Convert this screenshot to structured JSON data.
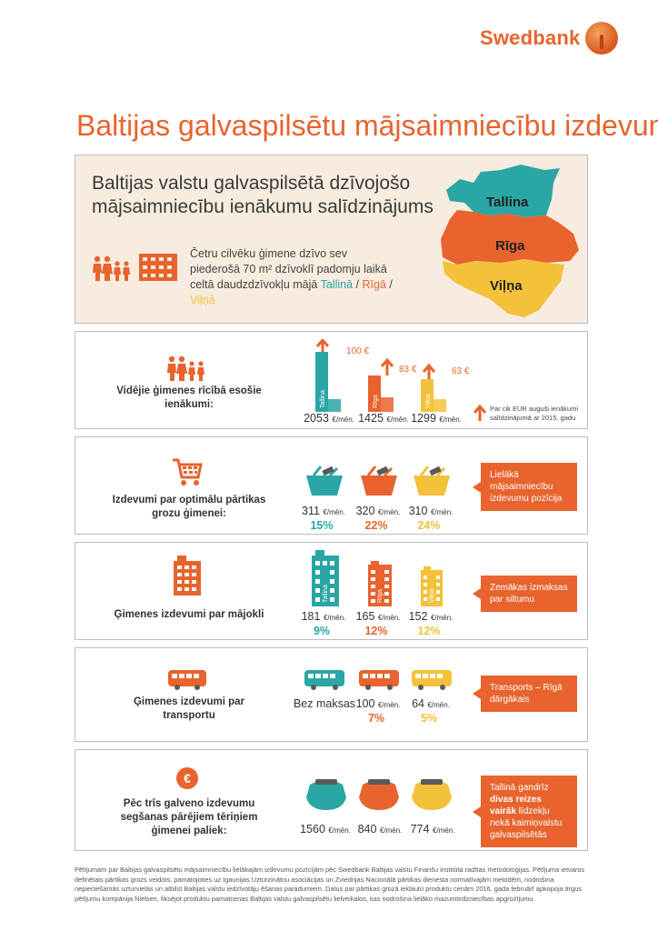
{
  "brand": {
    "name": "Swedbank"
  },
  "title": "Baltijas galvaspilsētu mājsaimniecību izdevumi",
  "intro": {
    "title": "Baltijas valstu galvaspilsētā dzīvojošo mājsaimniecību ienākumu salīdzinājums",
    "text_prefix": "Četru cilvēku ģimene dzīvo sev piederošā 70 m² dzīvoklī padomju laikā celtā daudzdzīvokļu mājā ",
    "city_tallinn": "Tallinā",
    "sep1": " / ",
    "city_riga": "Rīgā",
    "sep2": " / ",
    "city_vilnius": "Viļņā",
    "map_labels": {
      "tallinn": "Tallina",
      "riga": "Rīga",
      "vilnius": "Viļņa"
    }
  },
  "colors": {
    "tallinn": "#2aa6a4",
    "riga": "#e8632d",
    "vilnius": "#f3c13a",
    "accent": "#e8632d"
  },
  "income": {
    "label": "Vidējie ģimenes rīcībā esošie ienākumi:",
    "values": [
      {
        "amount": "2053",
        "unit": "€/mēn.",
        "increase": "100 €",
        "city": "Tallina"
      },
      {
        "amount": "1425",
        "unit": "€/mēn.",
        "increase": "83 €",
        "city": "Rīga"
      },
      {
        "amount": "1299",
        "unit": "€/mēn.",
        "increase": "63 €",
        "city": "Viļņa"
      }
    ],
    "legend": "Par cik EUR auguši ienākumi salīdzinājumā ar 2015. gadu"
  },
  "food": {
    "label": "Izdevumi par optimālu pārtikas grozu ģimenei:",
    "values": [
      {
        "amount": "311",
        "unit": "€/mēn.",
        "pct": "15%"
      },
      {
        "amount": "320",
        "unit": "€/mēn.",
        "pct": "22%"
      },
      {
        "amount": "310",
        "unit": "€/mēn.",
        "pct": "24%"
      }
    ],
    "callout": "Lielākā mājsaimniecību izdevumu pozīcija"
  },
  "housing": {
    "label": "Ģimenes izdevumi par mājokli",
    "values": [
      {
        "amount": "181",
        "unit": "€/mēn.",
        "pct": "9%",
        "city": "Tallina"
      },
      {
        "amount": "165",
        "unit": "€/mēn.",
        "pct": "12%",
        "city": "Rīga"
      },
      {
        "amount": "152",
        "unit": "€/mēn.",
        "pct": "12%",
        "city": "Viļņa"
      }
    ],
    "callout": "Zemākas izmaksas par siltumu"
  },
  "transport": {
    "label": "Ģimenes izdevumi par transportu",
    "values": [
      {
        "amount": "Bez maksas",
        "unit": "",
        "pct": ""
      },
      {
        "amount": "100",
        "unit": "€/mēn.",
        "pct": "7%"
      },
      {
        "amount": "64",
        "unit": "€/mēn.",
        "pct": "5%"
      }
    ],
    "callout": "Transports – Rīgā dārgākais"
  },
  "remaining": {
    "label": "Pēc trīs galveno izdevumu segšanas pārējiem tēriņiem ģimenei paliek:",
    "values": [
      {
        "amount": "1560",
        "unit": "€/mēn."
      },
      {
        "amount": "840",
        "unit": "€/mēn."
      },
      {
        "amount": "774",
        "unit": "€/mēn."
      }
    ],
    "callout_prefix": "Tallinā gandrīz ",
    "callout_bold": "divas reizes vairāk",
    "callout_suffix": " līdzekļu nekā kaimiņvalstu galvaspilsētās"
  },
  "footnote": "Pētījumam par Baltijas galvaspilsētu mājsaimniecību lielākajām izdevumu pozīcijām pēc Swedbank Baltijas valstu Finanšu institūta radītas metodoloģijas. Pētījuma ietvaros definētais pārtikas grozs veidots, pamatojoties uz Igaunijas Uzturzinātņu asociācijas un Zviedrijas Nacionālā pārtikas dienesta normatīvajām metodēm, nodrošina nepieciešamās uzturvielas un atbilst Baltijas valstu iedzīvotāju ēšanas paradumiem. Datus par pārtikas grozā iekļauto produktu cenām 2016. gada februārī apkopoja tirgus pētījumu kompānija Nielsen, fiksējot produktu pamatcenas Baltijas valstu galvaspilsētu lielveikalos, kas nodrošina lielāko mazumtirdzniecības apgrozījumu."
}
